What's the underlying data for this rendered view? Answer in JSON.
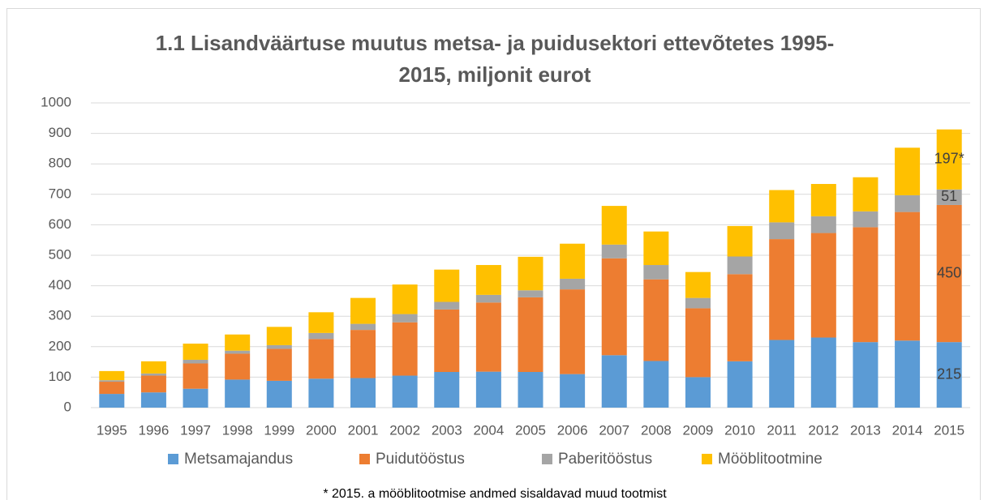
{
  "chart_data": {
    "type": "stacked_bar",
    "title": "1.1 Lisandväärtuse muutus metsa- ja puidusektori ettevõtetes 1995-",
    "title_line2": "2015, miljonit eurot",
    "note": "* 2015. a mööblitootmise andmed sisaldavad muud tootmist",
    "categories": [
      "1995",
      "1996",
      "1997",
      "1998",
      "1999",
      "2000",
      "2001",
      "2002",
      "2003",
      "2004",
      "2005",
      "2006",
      "2007",
      "2008",
      "2009",
      "2010",
      "2011",
      "2012",
      "2013",
      "2014",
      "2015"
    ],
    "series": [
      {
        "name": "Metsamajandus",
        "color": "#5b9bd5",
        "values": [
          45,
          50,
          62,
          92,
          88,
          95,
          97,
          105,
          117,
          118,
          117,
          110,
          172,
          153,
          100,
          152,
          222,
          230,
          215,
          220,
          215
        ]
      },
      {
        "name": "Puidutööstus",
        "color": "#ed7d31",
        "values": [
          40,
          55,
          83,
          85,
          105,
          130,
          158,
          175,
          205,
          227,
          245,
          278,
          318,
          268,
          226,
          286,
          331,
          343,
          377,
          422,
          450
        ]
      },
      {
        "name": "Paberitööstus",
        "color": "#a5a5a5",
        "values": [
          5,
          7,
          12,
          10,
          12,
          20,
          20,
          27,
          25,
          25,
          23,
          35,
          45,
          47,
          34,
          58,
          55,
          55,
          52,
          55,
          51
        ]
      },
      {
        "name": "Mööblitootmine",
        "color": "#ffc000",
        "values": [
          30,
          40,
          53,
          53,
          60,
          68,
          85,
          97,
          106,
          98,
          110,
          115,
          127,
          110,
          85,
          100,
          106,
          106,
          112,
          156,
          197
        ],
        "value_labels": [
          null,
          null,
          null,
          null,
          null,
          null,
          null,
          null,
          null,
          null,
          null,
          null,
          null,
          null,
          null,
          null,
          null,
          null,
          null,
          null,
          "197*"
        ]
      }
    ],
    "ylim": [
      0,
      1000
    ],
    "yticks": [
      0,
      100,
      200,
      300,
      400,
      500,
      600,
      700,
      800,
      900,
      1000
    ],
    "grid": true,
    "legend": "bottom"
  }
}
